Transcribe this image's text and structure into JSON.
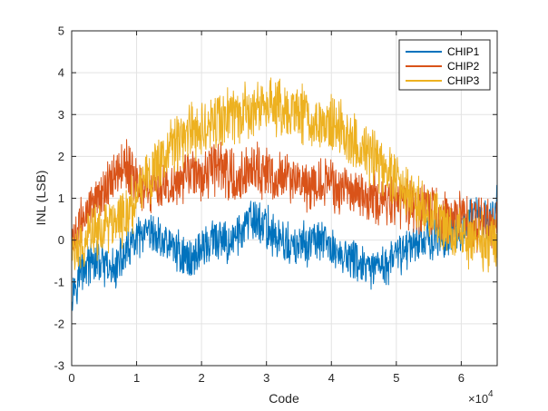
{
  "chart_data": {
    "type": "line",
    "title": "",
    "xlabel": "Code",
    "ylabel": "INL (LSB)",
    "x_exponent_label": "×10",
    "x_exponent_power": "4",
    "xlim": [
      0,
      65535
    ],
    "ylim": [
      -3,
      5
    ],
    "x_tick_values": [
      0,
      10000,
      20000,
      30000,
      40000,
      50000,
      60000
    ],
    "x_tick_labels": [
      "0",
      "1",
      "2",
      "3",
      "4",
      "5",
      "6"
    ],
    "y_tick_values": [
      -3,
      -2,
      -1,
      0,
      1,
      2,
      3,
      4,
      5
    ],
    "y_tick_labels": [
      "-3",
      "-2",
      "-1",
      "0",
      "1",
      "2",
      "3",
      "4",
      "5"
    ],
    "grid": true,
    "legend_position": "top-right",
    "series": [
      {
        "name": "CHIP1",
        "color": "#0072BD",
        "noise_amplitude": 0.45,
        "x": [
          0,
          2000,
          4000,
          6000,
          8000,
          10000,
          12000,
          14000,
          16000,
          18000,
          20000,
          22000,
          24000,
          26000,
          28000,
          30000,
          32000,
          34000,
          36000,
          38000,
          40000,
          42000,
          44000,
          46000,
          48000,
          50000,
          52000,
          54000,
          56000,
          58000,
          60000,
          62000,
          64000,
          65535
        ],
        "y": [
          -1.2,
          -0.6,
          -0.5,
          -0.8,
          -0.4,
          0.0,
          0.1,
          0.0,
          -0.2,
          -0.5,
          -0.2,
          0.0,
          -0.1,
          0.2,
          0.5,
          0.3,
          0.0,
          -0.2,
          -0.1,
          0.0,
          -0.2,
          -0.4,
          -0.5,
          -0.8,
          -0.6,
          -0.4,
          -0.1,
          0.1,
          0.0,
          0.1,
          0.3,
          0.6,
          0.4,
          0.8
        ]
      },
      {
        "name": "CHIP2",
        "color": "#D95319",
        "noise_amplitude": 0.55,
        "x": [
          0,
          2000,
          4000,
          6000,
          8000,
          10000,
          12000,
          14000,
          16000,
          18000,
          20000,
          22000,
          24000,
          26000,
          28000,
          30000,
          32000,
          34000,
          36000,
          38000,
          40000,
          42000,
          44000,
          46000,
          48000,
          50000,
          52000,
          54000,
          56000,
          58000,
          60000,
          62000,
          64000,
          65535
        ],
        "y": [
          0.0,
          0.5,
          1.0,
          1.4,
          1.8,
          1.4,
          1.2,
          1.3,
          1.4,
          1.6,
          1.5,
          1.7,
          1.6,
          1.5,
          1.7,
          1.6,
          1.5,
          1.4,
          1.3,
          1.4,
          1.3,
          1.2,
          1.1,
          1.0,
          1.0,
          0.9,
          0.9,
          0.7,
          0.7,
          0.6,
          0.5,
          0.4,
          0.3,
          0.6
        ]
      },
      {
        "name": "CHIP3",
        "color": "#EDB120",
        "noise_amplitude": 0.6,
        "x": [
          0,
          2000,
          4000,
          6000,
          8000,
          10000,
          12000,
          14000,
          16000,
          18000,
          20000,
          22000,
          24000,
          26000,
          28000,
          30000,
          32000,
          34000,
          36000,
          38000,
          40000,
          42000,
          44000,
          46000,
          48000,
          50000,
          52000,
          54000,
          56000,
          58000,
          60000,
          62000,
          64000,
          65535
        ],
        "y": [
          -0.5,
          0.0,
          0.2,
          0.3,
          0.6,
          1.0,
          1.6,
          2.0,
          2.3,
          2.5,
          2.7,
          2.8,
          2.9,
          3.0,
          3.1,
          3.2,
          3.2,
          3.1,
          3.0,
          2.9,
          2.8,
          2.6,
          2.3,
          2.0,
          1.7,
          1.4,
          1.1,
          0.9,
          0.6,
          0.3,
          0.1,
          0.0,
          -0.1,
          0.0
        ]
      }
    ]
  }
}
